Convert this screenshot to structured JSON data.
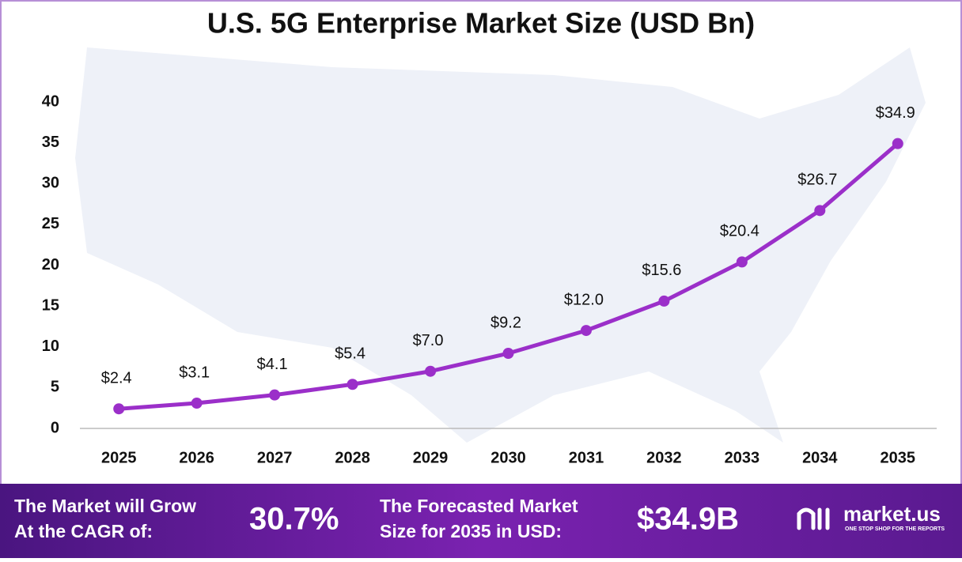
{
  "chart_data": {
    "type": "line",
    "title": "U.S. 5G Enterprise Market Size (USD Bn)",
    "categories": [
      "2025",
      "2026",
      "2027",
      "2028",
      "2029",
      "2030",
      "2031",
      "2032",
      "2033",
      "2034",
      "2035"
    ],
    "values": [
      2.4,
      3.1,
      4.1,
      5.4,
      7.0,
      9.2,
      12.0,
      15.6,
      20.4,
      26.7,
      34.9
    ],
    "value_labels": [
      "$2.4",
      "$3.1",
      "$4.1",
      "$5.4",
      "$7.0",
      "$9.2",
      "$12.0",
      "$15.6",
      "$20.4",
      "$26.7",
      "$34.9"
    ],
    "color": "#9b2fc9",
    "ylim": [
      0,
      40
    ],
    "yticks": [
      0,
      5,
      10,
      15,
      20,
      25,
      30,
      35,
      40
    ],
    "grid": false
  },
  "footer": {
    "cagr_text": [
      "The Market will Grow",
      "At the CAGR of:"
    ],
    "cagr_value": "30.7%",
    "forecast_text": [
      "The Forecasted Market",
      "Size for 2035 in USD:"
    ],
    "forecast_value": "$34.9B",
    "brand": "market.us",
    "tagline": "ONE STOP SHOP FOR THE REPORTS"
  }
}
